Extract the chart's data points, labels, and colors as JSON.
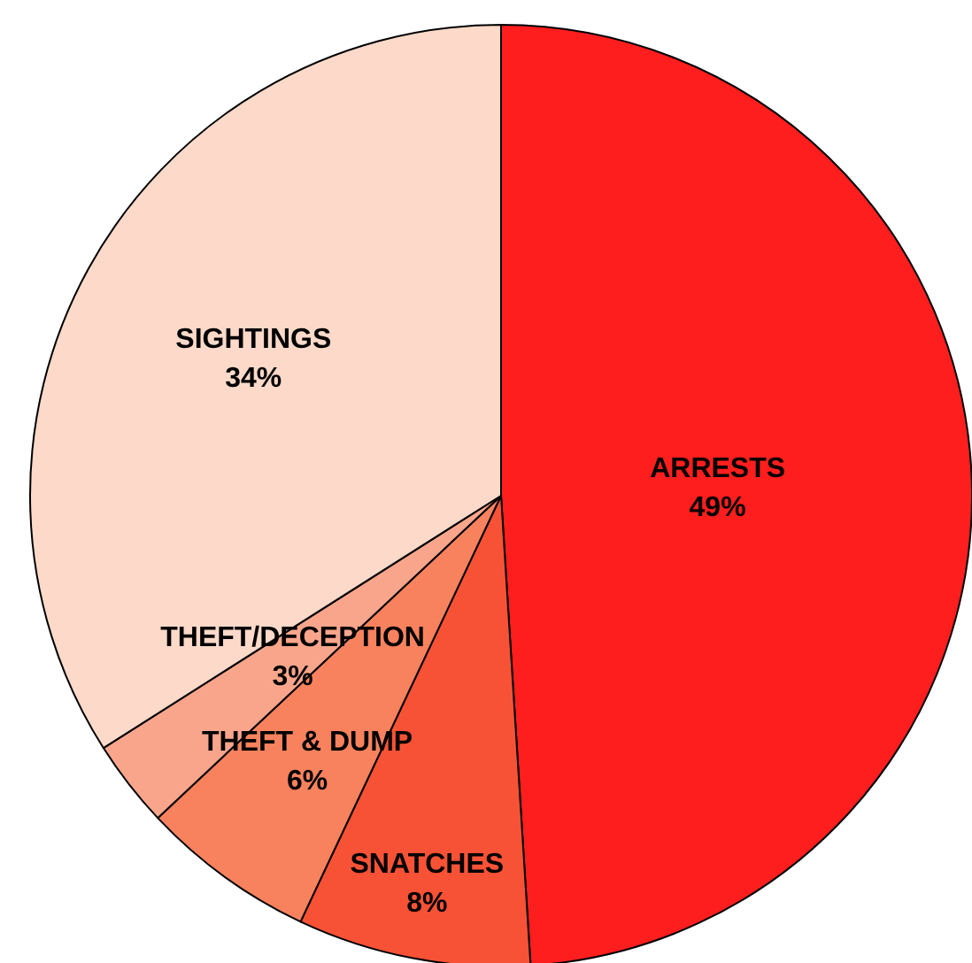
{
  "chart_data": {
    "type": "pie",
    "categories": [
      "ARRESTS",
      "SNATCHES",
      "THEFT & DUMP",
      "THEFT/DECEPTION",
      "SIGHTINGS"
    ],
    "values": [
      49,
      8,
      6,
      3,
      34
    ],
    "value_labels": [
      "49%",
      "8%",
      "6%",
      "3%",
      "34%"
    ],
    "colors": [
      "#ff1e1e",
      "#f85236",
      "#f8825e",
      "#f9a58c",
      "#fcd9c9"
    ],
    "legend": false
  }
}
